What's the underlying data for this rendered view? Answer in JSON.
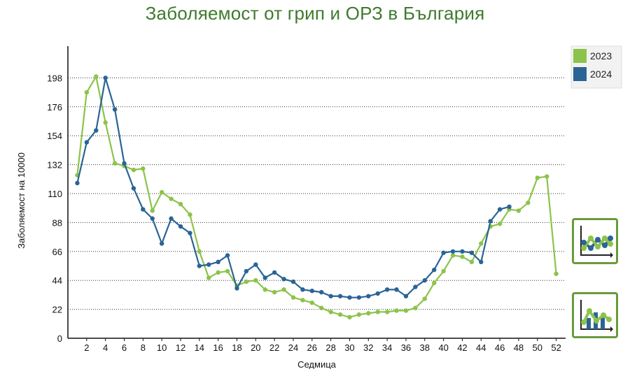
{
  "title": "Заболяемост от грип и ОРЗ в България",
  "controls": {
    "line_view": "line-chart-icon",
    "bar_view": "bar-line-chart-icon"
  },
  "chart_data": {
    "type": "line",
    "title": "Заболяемост от грип и ОРЗ в България",
    "xlabel": "Седмица",
    "ylabel": "Заболяемост на 10000",
    "ylim": [
      0,
      220
    ],
    "yticks": [
      0,
      22,
      44,
      66,
      88,
      110,
      132,
      154,
      176,
      198
    ],
    "xlim": [
      1,
      52
    ],
    "xticks": [
      2,
      4,
      6,
      8,
      10,
      12,
      14,
      16,
      18,
      20,
      22,
      24,
      26,
      28,
      30,
      32,
      34,
      36,
      38,
      40,
      42,
      44,
      46,
      48,
      50,
      52
    ],
    "grid": "horizontal dotted",
    "legend_position": "top-right",
    "series": [
      {
        "name": "2023",
        "color": "#8cc34a",
        "x": [
          1,
          2,
          3,
          4,
          5,
          6,
          7,
          8,
          9,
          10,
          11,
          12,
          13,
          14,
          15,
          16,
          17,
          18,
          19,
          20,
          21,
          22,
          23,
          24,
          25,
          26,
          27,
          28,
          29,
          30,
          31,
          32,
          33,
          34,
          35,
          36,
          37,
          38,
          39,
          40,
          41,
          42,
          43,
          44,
          45,
          46,
          47,
          48,
          49,
          50,
          51,
          52
        ],
        "values": [
          124,
          187,
          199,
          164,
          133,
          131,
          128,
          129,
          97,
          111,
          106,
          102,
          94,
          66,
          46,
          50,
          51,
          40,
          43,
          44,
          37,
          35,
          37,
          31,
          29,
          27,
          23,
          20,
          18,
          16,
          18,
          19,
          20,
          20,
          21,
          21,
          23,
          30,
          42,
          51,
          63,
          62,
          58,
          72,
          85,
          87,
          98,
          97,
          103,
          122,
          123,
          49
        ]
      },
      {
        "name": "2024",
        "color": "#2a6496",
        "x": [
          1,
          2,
          3,
          4,
          5,
          6,
          7,
          8,
          9,
          10,
          11,
          12,
          13,
          14,
          15,
          16,
          17,
          18,
          19,
          20,
          21,
          22,
          23,
          24,
          25,
          26,
          27,
          28,
          29,
          30,
          31,
          32,
          33,
          34,
          35,
          36,
          37,
          38,
          39,
          40,
          41,
          42,
          43,
          44,
          45,
          46,
          47
        ],
        "values": [
          118,
          149,
          158,
          198,
          174,
          133,
          114,
          98,
          91,
          72,
          91,
          85,
          80,
          55,
          56,
          58,
          63,
          38,
          51,
          56,
          46,
          50,
          45,
          43,
          37,
          36,
          35,
          32,
          32,
          31,
          31,
          32,
          34,
          37,
          37,
          32,
          39,
          44,
          52,
          65,
          66,
          66,
          65,
          58,
          89,
          98,
          100
        ]
      }
    ]
  }
}
